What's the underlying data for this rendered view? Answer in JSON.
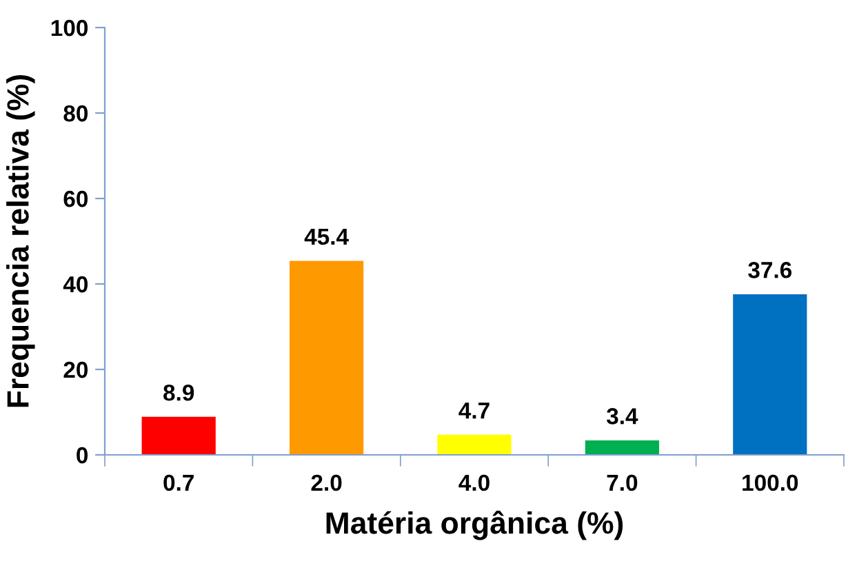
{
  "chart_data": {
    "type": "bar",
    "xlabel": "Matéria orgânica (%)",
    "ylabel": "Frequencia relativa (%)",
    "categories": [
      "0.7",
      "2.0",
      "4.0",
      "7.0",
      "100.0"
    ],
    "values": [
      8.9,
      45.4,
      4.7,
      3.4,
      37.6
    ],
    "colors": [
      "#ff0000",
      "#ff9900",
      "#ffff00",
      "#00b050",
      "#0070c0"
    ],
    "ylim": [
      0,
      100
    ],
    "yticks": [
      0,
      20,
      40,
      60,
      80,
      100
    ],
    "grid": false,
    "data_labels": true
  }
}
